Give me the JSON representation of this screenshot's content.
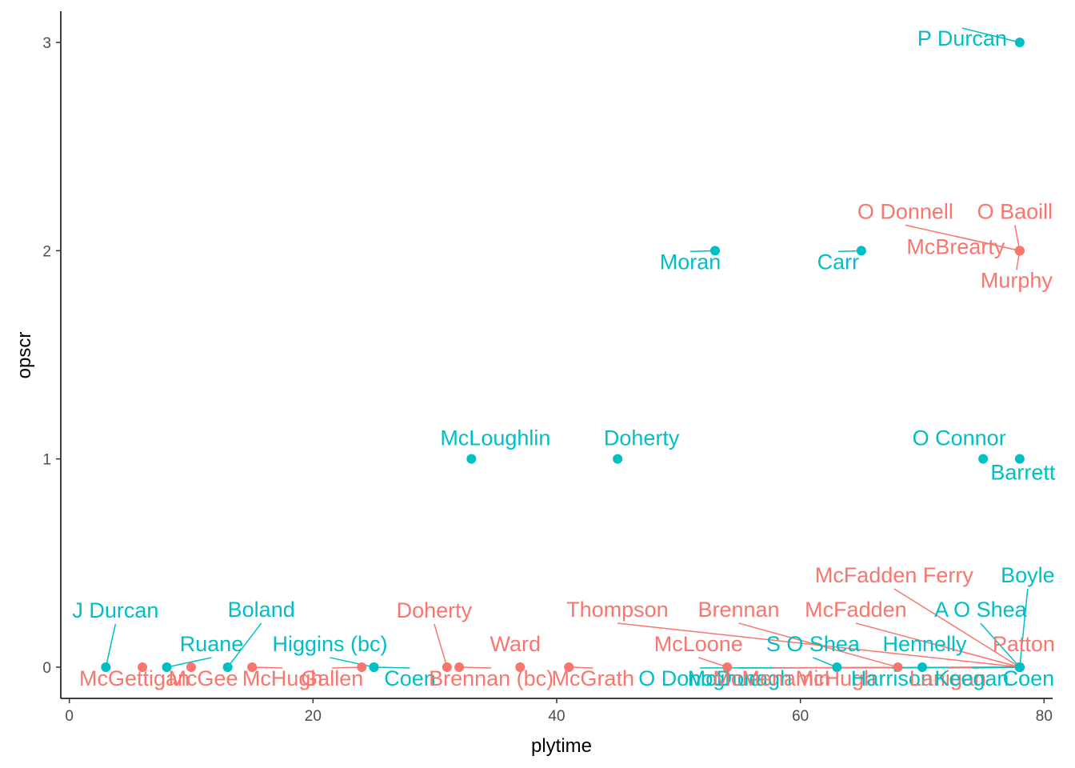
{
  "chart_data": {
    "type": "scatter",
    "xlabel": "plytime",
    "ylabel": "opscr",
    "xlim": [
      -0.7,
      80.7
    ],
    "ylim": [
      -0.15,
      3.15
    ],
    "x_ticks": [
      0,
      20,
      40,
      60,
      80
    ],
    "y_ticks": [
      0,
      1,
      2,
      3
    ],
    "grid": false,
    "legend": "none",
    "colors": {
      "red": "#F8766D",
      "teal": "#00BFC4"
    },
    "points": [
      {
        "x": 3,
        "y": 0,
        "label": "J Durcan",
        "group": "teal"
      },
      {
        "x": 6,
        "y": 0,
        "label": "McGettigan",
        "group": "red"
      },
      {
        "x": 8,
        "y": 0,
        "label": "Ruane",
        "group": "teal"
      },
      {
        "x": 10,
        "y": 0,
        "label": "McGee",
        "group": "red"
      },
      {
        "x": 13,
        "y": 0,
        "label": "Boland",
        "group": "teal"
      },
      {
        "x": 15,
        "y": 0,
        "label": "McHugh",
        "group": "red"
      },
      {
        "x": 24,
        "y": 0,
        "label": "Gallen",
        "group": "red"
      },
      {
        "x": 25,
        "y": 0,
        "label": "Higgins (bc)",
        "group": "teal"
      },
      {
        "x": 25,
        "y": 0,
        "label": "Coen",
        "group": "teal"
      },
      {
        "x": 31,
        "y": 0,
        "label": "Doherty",
        "group": "red"
      },
      {
        "x": 32,
        "y": 0,
        "label": "Brennan (bc)",
        "group": "red"
      },
      {
        "x": 37,
        "y": 0,
        "label": "Ward",
        "group": "red"
      },
      {
        "x": 41,
        "y": 0,
        "label": "McGrath",
        "group": "red"
      },
      {
        "x": 33,
        "y": 1,
        "label": "McLoughlin",
        "group": "teal"
      },
      {
        "x": 45,
        "y": 1,
        "label": "Doherty",
        "group": "teal"
      },
      {
        "x": 53,
        "y": 2,
        "label": "Moran",
        "group": "teal"
      },
      {
        "x": 65,
        "y": 2,
        "label": "Carr",
        "group": "teal"
      },
      {
        "x": 54,
        "y": 0,
        "label": "McLoone",
        "group": "red"
      },
      {
        "x": 63,
        "y": 0,
        "label": "S O Shea",
        "group": "teal"
      },
      {
        "x": 68,
        "y": 0,
        "label": "Brennan",
        "group": "red"
      },
      {
        "x": 70,
        "y": 0,
        "label": "Hennelly",
        "group": "teal"
      },
      {
        "x": 75,
        "y": 1,
        "label": "O Connor",
        "group": "teal"
      },
      {
        "x": 78,
        "y": 1,
        "label": "Barrett",
        "group": "teal"
      },
      {
        "x": 78,
        "y": 3,
        "label": "P Durcan",
        "group": "teal"
      },
      {
        "x": 78,
        "y": 2,
        "label": "O Donnell",
        "group": "red"
      },
      {
        "x": 78,
        "y": 2,
        "label": "O Baoill",
        "group": "red"
      },
      {
        "x": 78,
        "y": 2,
        "label": "McBrearty",
        "group": "red"
      },
      {
        "x": 78,
        "y": 2,
        "label": "Murphy",
        "group": "red"
      },
      {
        "x": 78,
        "y": 0,
        "label": "McFadden Ferry",
        "group": "red"
      },
      {
        "x": 78,
        "y": 0,
        "label": "Boyle",
        "group": "teal"
      },
      {
        "x": 78,
        "y": 0,
        "label": "Thompson",
        "group": "red"
      },
      {
        "x": 78,
        "y": 0,
        "label": "McFadden",
        "group": "red"
      },
      {
        "x": 78,
        "y": 0,
        "label": "A O Shea",
        "group": "teal"
      },
      {
        "x": 78,
        "y": 0,
        "label": "Patton",
        "group": "red"
      },
      {
        "x": 78,
        "y": 0,
        "label": "Coen",
        "group": "teal"
      },
      {
        "x": 78,
        "y": 0,
        "label": "O Donoghue",
        "group": "teal"
      },
      {
        "x": 78,
        "y": 0,
        "label": "McDonagh",
        "group": "teal"
      },
      {
        "x": 78,
        "y": 0,
        "label": "McMenamin",
        "group": "red"
      },
      {
        "x": 78,
        "y": 0,
        "label": "McHugh",
        "group": "red"
      },
      {
        "x": 78,
        "y": 0,
        "label": "Harrison",
        "group": "teal"
      },
      {
        "x": 78,
        "y": 0,
        "label": "Lanigan",
        "group": "red"
      },
      {
        "x": 78,
        "y": 0,
        "label": "Keegan",
        "group": "teal"
      }
    ]
  }
}
